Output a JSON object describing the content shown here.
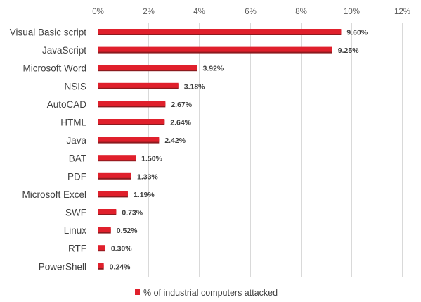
{
  "chart_data": {
    "type": "bar",
    "orientation": "horizontal",
    "categories": [
      "Visual Basic script",
      "JavaScript",
      "Microsoft Word",
      "NSIS",
      "AutoCAD",
      "HTML",
      "Java",
      "BAT",
      "PDF",
      "Microsoft Excel",
      "SWF",
      "Linux",
      "RTF",
      "PowerShell"
    ],
    "series": [
      {
        "name": "% of industrial computers attacked",
        "values": [
          9.6,
          9.25,
          3.92,
          3.18,
          2.67,
          2.64,
          2.42,
          1.5,
          1.33,
          1.19,
          0.73,
          0.52,
          0.3,
          0.24
        ],
        "data_labels": [
          "9.60%",
          "9.25%",
          "3.92%",
          "3.18%",
          "2.67%",
          "2.64%",
          "2.42%",
          "1.50%",
          "1.33%",
          "1.19%",
          "0.73%",
          "0.52%",
          "0.30%",
          "0.24%"
        ]
      }
    ],
    "xlim": [
      0,
      12
    ],
    "x_ticks": [
      0,
      2,
      4,
      6,
      8,
      10,
      12
    ],
    "x_tick_labels": [
      "0%",
      "2%",
      "4%",
      "6%",
      "8%",
      "10%",
      "12%"
    ],
    "x_axis_position": "top",
    "grid": true,
    "legend_position": "bottom",
    "colors": {
      "bar": "#e0202c",
      "bar_shadow": "#8c1a1e",
      "grid": "#d9d9d9"
    }
  }
}
